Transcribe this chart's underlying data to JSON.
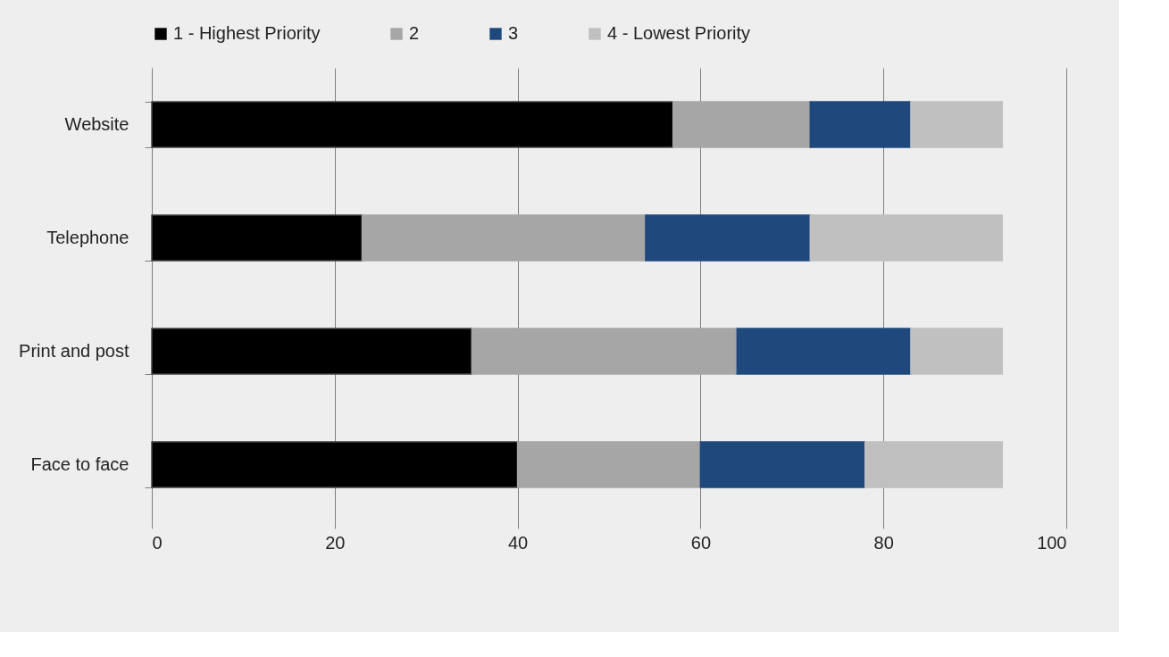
{
  "chart_data": {
    "type": "bar",
    "orientation": "horizontal",
    "stacked": true,
    "categories": [
      "Website",
      "Telephone",
      "Print and post",
      "Face to face"
    ],
    "series": [
      {
        "name": "1 - Highest Priority",
        "color": "#000000",
        "values": [
          57,
          23,
          35,
          40
        ]
      },
      {
        "name": "2",
        "color": "#a6a6a6",
        "values": [
          15,
          31,
          29,
          20
        ]
      },
      {
        "name": "3",
        "color": "#1f497d",
        "values": [
          11,
          18,
          19,
          18
        ]
      },
      {
        "name": "4 - Lowest Priority",
        "color": "#c0c0c0",
        "values": [
          10,
          21,
          10,
          15
        ]
      }
    ],
    "xlim": [
      0,
      100
    ],
    "xticks": [
      0,
      20,
      40,
      60,
      80,
      100
    ],
    "grid": "x",
    "legend": "top"
  }
}
